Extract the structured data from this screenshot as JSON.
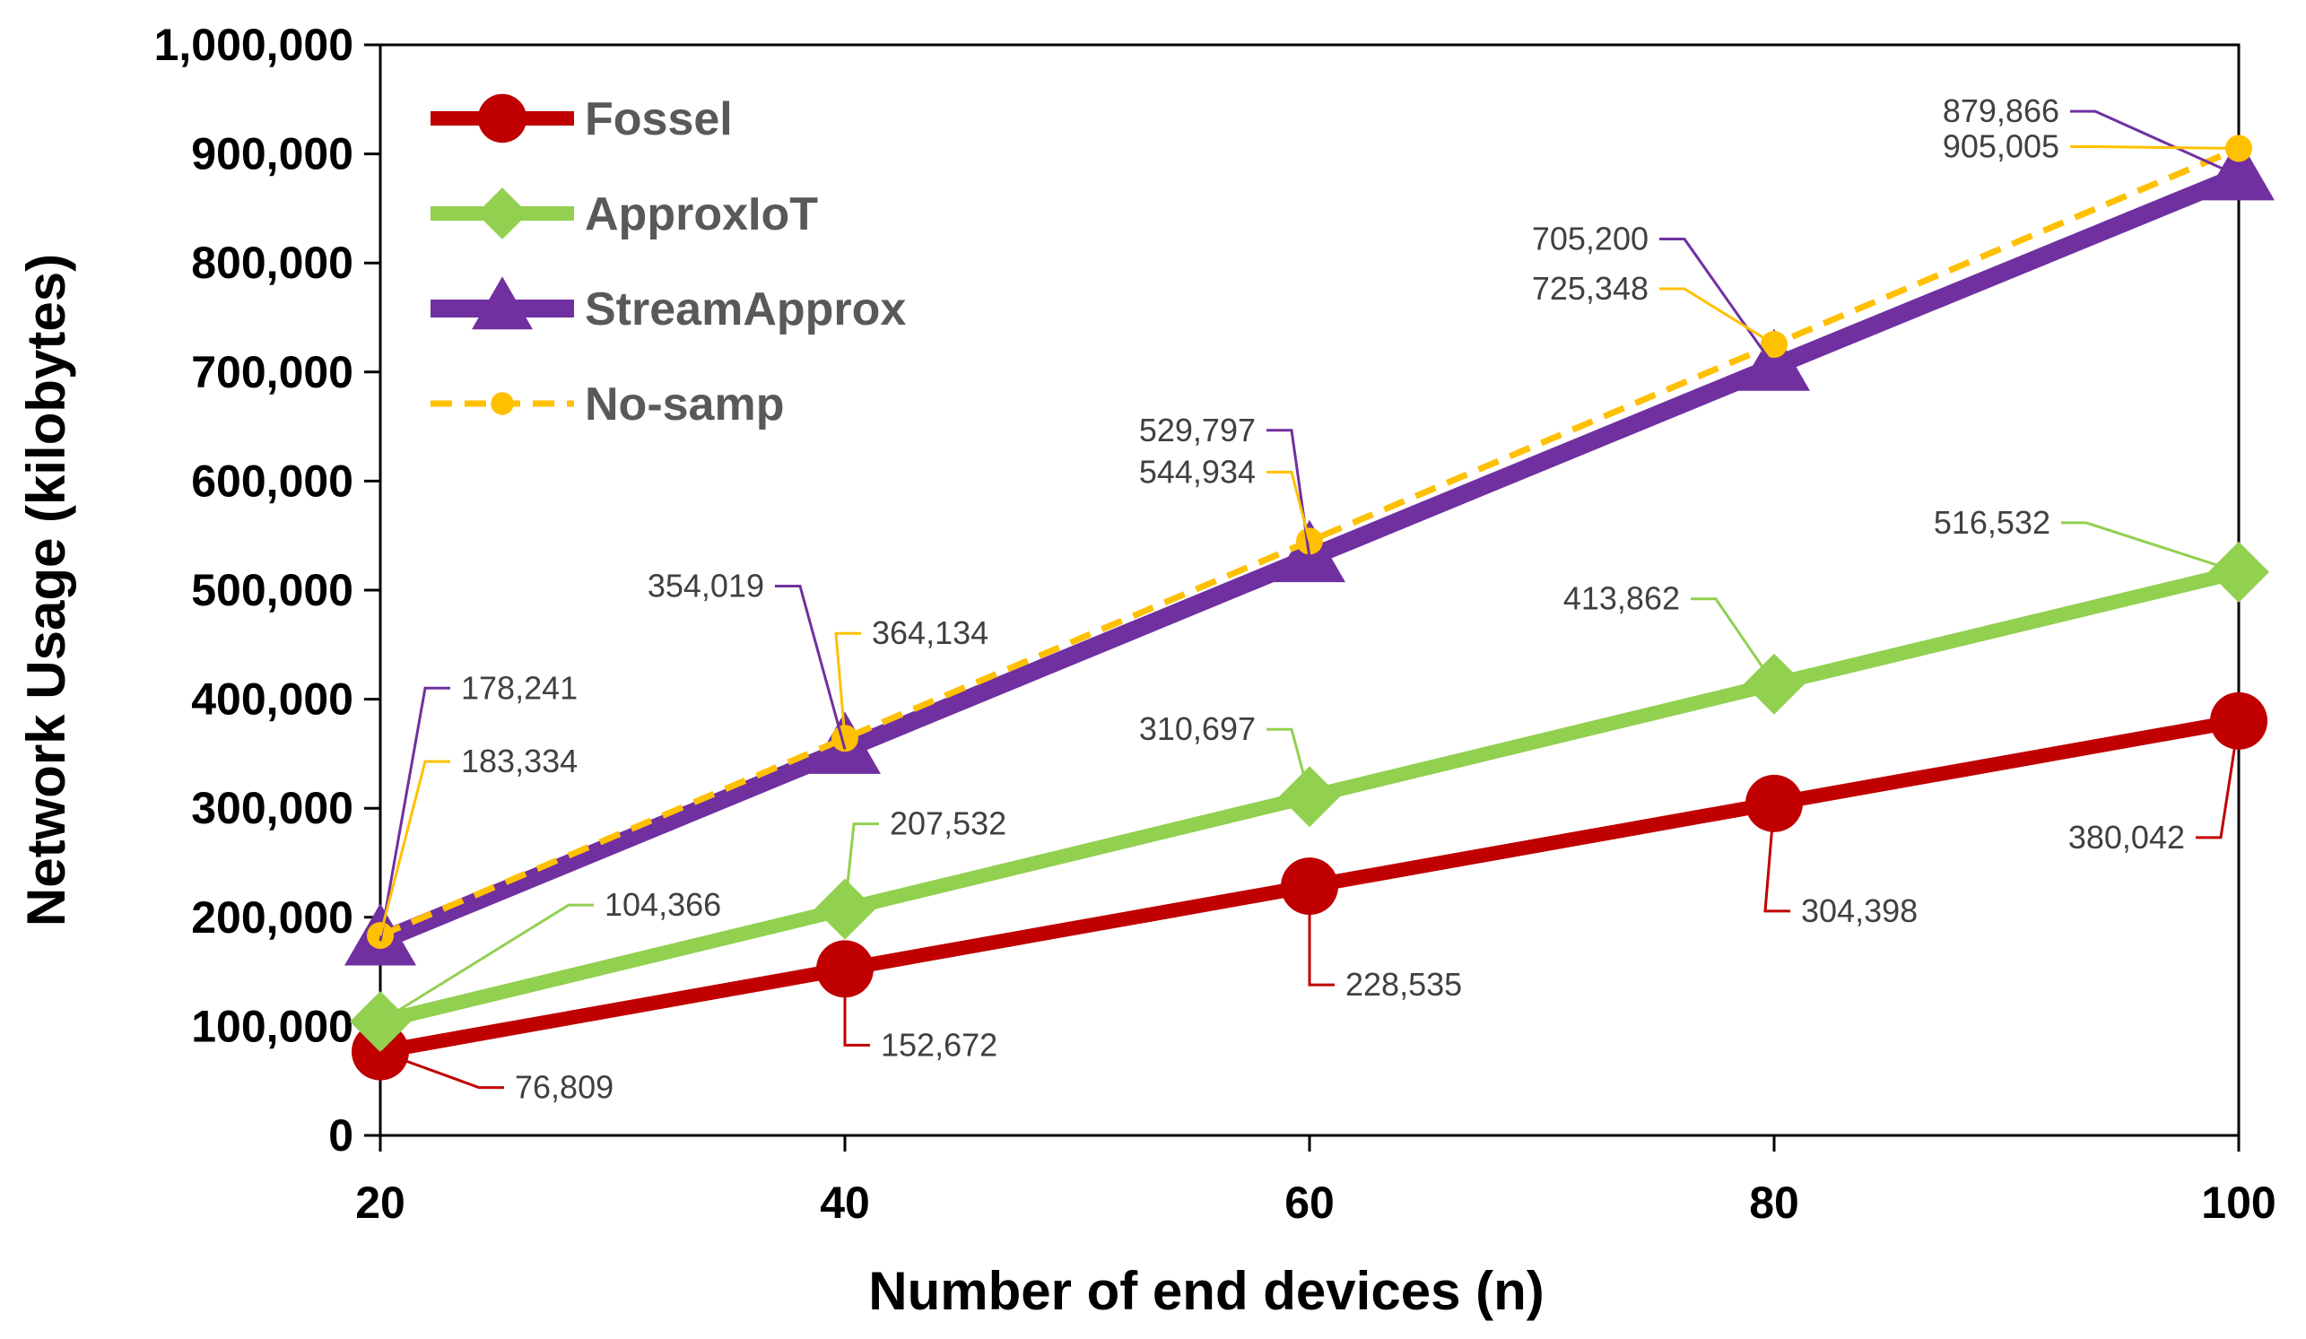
{
  "chart_data": {
    "type": "line",
    "title": "",
    "xlabel": "Number of end devices (n)",
    "ylabel": "Network Usage (kilobytes)",
    "x": [
      20,
      40,
      60,
      80,
      100
    ],
    "x_tick_labels": [
      "20",
      "40",
      "60",
      "80",
      "100"
    ],
    "ylim": [
      0,
      1000000
    ],
    "y_tick_labels": [
      "0",
      "100,000",
      "200,000",
      "300,000",
      "400,000",
      "500,000",
      "600,000",
      "700,000",
      "800,000",
      "900,000",
      "1,000,000"
    ],
    "grid": false,
    "legend_position": "top-left",
    "series": [
      {
        "name": "Fossel",
        "color": "#C00000",
        "marker": "circle",
        "line_style": "solid",
        "values": [
          76809,
          152672,
          228535,
          304398,
          380042
        ],
        "labels": [
          "76,809",
          "152,672",
          "228,535",
          "304,398",
          "380,042"
        ]
      },
      {
        "name": "ApproxIoT",
        "color": "#92D050",
        "marker": "diamond",
        "line_style": "solid",
        "values": [
          104366,
          207532,
          310697,
          413862,
          516532
        ],
        "labels": [
          "104,366",
          "207,532",
          "310,697",
          "413,862",
          "516,532"
        ]
      },
      {
        "name": "StreamApprox",
        "color": "#7030A0",
        "marker": "triangle",
        "line_style": "solid",
        "values": [
          178241,
          354019,
          529797,
          705200,
          879866
        ],
        "labels": [
          "178,241",
          "354,019",
          "529,797",
          "705,200",
          "879,866"
        ]
      },
      {
        "name": "No-samp",
        "color": "#FFC000",
        "marker": "circle",
        "line_style": "dashed",
        "values": [
          183334,
          364134,
          544934,
          725348,
          905005
        ],
        "labels": [
          "183,334",
          "364,134",
          "544,934",
          "725,348",
          "905,005"
        ]
      }
    ]
  }
}
